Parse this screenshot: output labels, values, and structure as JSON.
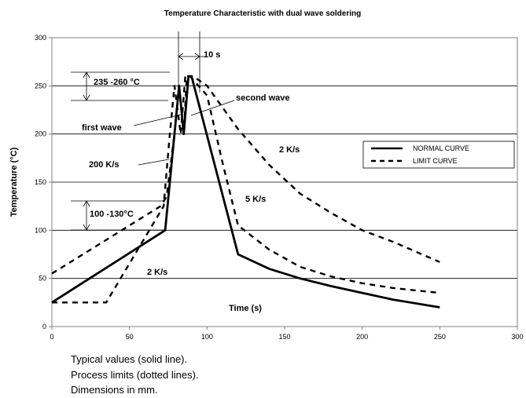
{
  "chart_data": {
    "type": "line",
    "title": "Temperature Characteristic with dual wave soldering",
    "xlabel": "Time (s)",
    "ylabel": "Temperature (°C)",
    "xlim": [
      0,
      300
    ],
    "ylim": [
      0,
      300
    ],
    "xticks": [
      0,
      50,
      100,
      150,
      200,
      250,
      300
    ],
    "yticks": [
      0,
      50,
      100,
      150,
      200,
      250,
      300
    ],
    "grid": "horizontal",
    "legend_position": "right",
    "series": [
      {
        "name": "NORMAL CURVE",
        "style": "solid",
        "points": [
          [
            0,
            25
          ],
          [
            73,
            100
          ],
          [
            82,
            250
          ],
          [
            85,
            200
          ],
          [
            88,
            260
          ],
          [
            90,
            260
          ],
          [
            120,
            75
          ],
          [
            140,
            60
          ],
          [
            160,
            50
          ],
          [
            180,
            42
          ],
          [
            200,
            35
          ],
          [
            220,
            28
          ],
          [
            250,
            20
          ]
        ]
      },
      {
        "name": "LIMIT CURVE",
        "style": "dashed",
        "points": [
          [
            0,
            55
          ],
          [
            20,
            75
          ],
          [
            40,
            95
          ],
          [
            55,
            110
          ],
          [
            70,
            125
          ],
          [
            74,
            135
          ],
          [
            79,
            200
          ],
          [
            82,
            250
          ],
          [
            85,
            200
          ],
          [
            87,
            260
          ],
          [
            91,
            260
          ],
          [
            100,
            250
          ],
          [
            120,
            205
          ],
          [
            140,
            168
          ],
          [
            160,
            138
          ],
          [
            180,
            118
          ],
          [
            200,
            100
          ],
          [
            220,
            88
          ],
          [
            250,
            67
          ]
        ]
      },
      {
        "name": "LIMIT CURVE",
        "style": "dashed",
        "points": [
          [
            0,
            25
          ],
          [
            35,
            25
          ],
          [
            72,
            125
          ],
          [
            76,
            200
          ],
          [
            79,
            250
          ],
          [
            83,
            200
          ],
          [
            86,
            260
          ],
          [
            89,
            260
          ],
          [
            100,
            240
          ],
          [
            110,
            170
          ],
          [
            120,
            105
          ],
          [
            140,
            80
          ],
          [
            160,
            62
          ],
          [
            180,
            52
          ],
          [
            200,
            45
          ],
          [
            220,
            40
          ],
          [
            250,
            35
          ]
        ]
      }
    ]
  },
  "annotations": {
    "ten_s": "10 s",
    "peak_range": "235 -260 °C",
    "second_wave": "second wave",
    "first_wave": "first wave",
    "two_ks_upper": "2 K/s",
    "two_hundred_ks": "200 K/s",
    "five_ks": "5 K/s",
    "preheat_range": "100 -130°C",
    "two_ks_lower": "2 K/s"
  },
  "notes": [
    "Typical values (solid line).",
    "Process limits (dotted lines).",
    "Dimensions in mm."
  ]
}
